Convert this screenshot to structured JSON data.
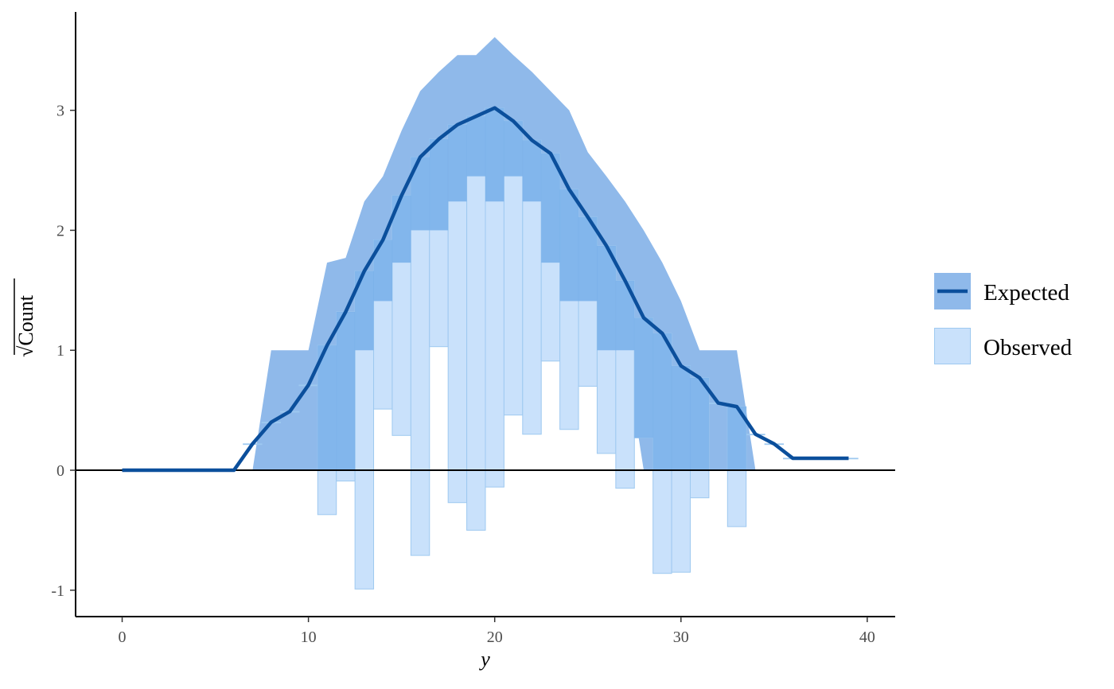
{
  "chart_data": {
    "type": "rootogram",
    "title": "",
    "xlabel": "y",
    "ylabel": "Count",
    "ylabel_prefix": "√",
    "xlim": [
      -2.5,
      41.5
    ],
    "ylim": [
      -1.22,
      3.82
    ],
    "x_ticks": [
      0,
      10,
      20,
      30,
      40
    ],
    "y_ticks": [
      -1,
      0,
      1,
      2,
      3
    ],
    "x_tick_labels": [
      "0",
      "10",
      "20",
      "30",
      "40"
    ],
    "y_tick_labels": [
      "-1",
      "0",
      "1",
      "2",
      "3"
    ],
    "legend": {
      "position": "right",
      "entries": [
        "Expected",
        "Observed"
      ]
    },
    "colors": {
      "expected_line": "#0b4f9c",
      "expected_band": "#8fb9ea",
      "observed_fill": "#c9e1fb",
      "observed_stroke": "#9ec9f0",
      "overlap_fill": "#76aee9",
      "zero_line": "#000000"
    },
    "expected": {
      "name": "Expected",
      "x": [
        0,
        1,
        2,
        3,
        4,
        5,
        6,
        7,
        8,
        9,
        10,
        11,
        12,
        13,
        14,
        15,
        16,
        17,
        18,
        19,
        20,
        21,
        22,
        23,
        24,
        25,
        26,
        27,
        28,
        29,
        30,
        31,
        32,
        33,
        34,
        35,
        36,
        37,
        38,
        39
      ],
      "values": [
        0,
        0,
        0,
        0,
        0,
        0,
        0,
        0.22,
        0.4,
        0.49,
        0.71,
        1.04,
        1.32,
        1.66,
        1.92,
        2.29,
        2.61,
        2.76,
        2.88,
        2.95,
        3.02,
        2.91,
        2.75,
        2.64,
        2.34,
        2.11,
        1.87,
        1.58,
        1.27,
        1.14,
        0.87,
        0.77,
        0.56,
        0.53,
        0.3,
        0.22,
        0.1,
        0.1,
        0.1,
        0.1
      ],
      "band_x": [
        7,
        8,
        9,
        10,
        11,
        12,
        13,
        14,
        15,
        16,
        17,
        18,
        19,
        20,
        21,
        22,
        23,
        24,
        25,
        26,
        27,
        28,
        29,
        30,
        31,
        32,
        33,
        34
      ],
      "band_lower": [
        0,
        0,
        0,
        0,
        0,
        0,
        1.0,
        1.41,
        1.73,
        2.0,
        2.0,
        2.24,
        2.45,
        2.24,
        2.45,
        2.24,
        1.73,
        1.41,
        1.41,
        1.0,
        1.0,
        0,
        0,
        0,
        0,
        0,
        0,
        0
      ],
      "band_upper": [
        0,
        1.0,
        1.0,
        1.0,
        1.73,
        1.77,
        2.24,
        2.45,
        2.83,
        3.16,
        3.32,
        3.46,
        3.46,
        3.61,
        3.46,
        3.32,
        3.16,
        3.0,
        2.65,
        2.45,
        2.24,
        2.0,
        1.73,
        1.41,
        1.0,
        1.0,
        1.0,
        0
      ]
    },
    "observed": {
      "name": "Observed",
      "x": [
        7,
        8,
        9,
        10,
        11,
        12,
        13,
        14,
        15,
        16,
        17,
        18,
        19,
        20,
        21,
        22,
        23,
        24,
        25,
        26,
        27,
        28,
        29,
        30,
        31,
        32,
        33,
        34,
        35,
        36,
        37,
        38,
        39
      ],
      "top": [
        0.22,
        0.4,
        0.49,
        0.71,
        1.04,
        1.32,
        1.66,
        1.92,
        2.29,
        2.61,
        2.76,
        2.88,
        2.95,
        3.02,
        2.91,
        2.75,
        2.64,
        2.34,
        2.11,
        1.87,
        1.58,
        1.27,
        1.14,
        0.87,
        0.77,
        0.56,
        0.53,
        0.3,
        0.22,
        0.1,
        0.1,
        0.1,
        0.1
      ],
      "bottom": [
        0.22,
        0.4,
        0.49,
        0.71,
        -0.37,
        -0.09,
        -0.99,
        0.51,
        0.29,
        -0.71,
        1.03,
        -0.27,
        -0.5,
        -0.14,
        0.46,
        0.3,
        0.91,
        0.34,
        0.7,
        0.14,
        -0.15,
        0.27,
        -0.86,
        -0.85,
        -0.23,
        0.56,
        -0.47,
        0.3,
        0.22,
        0.1,
        0.1,
        0.1,
        0.1
      ]
    }
  }
}
